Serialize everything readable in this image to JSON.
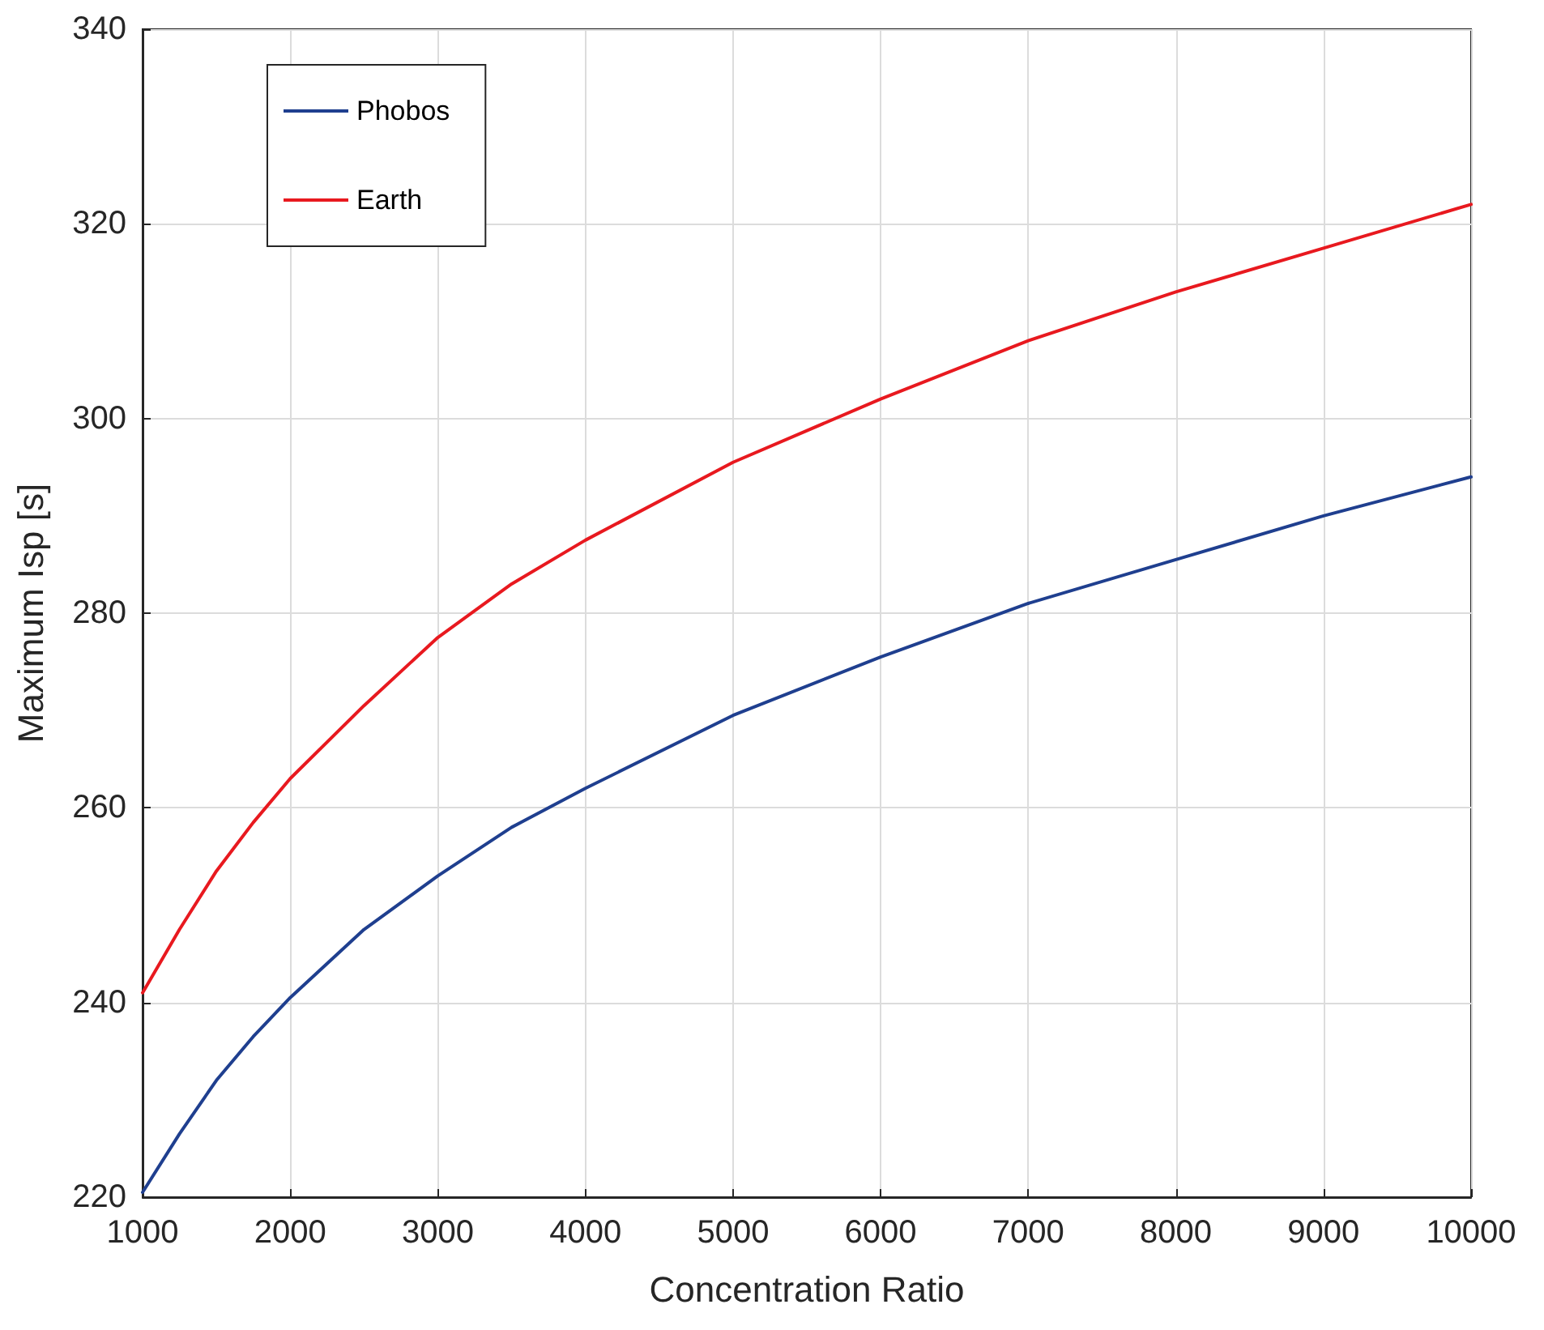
{
  "chart_data": {
    "type": "line",
    "xlabel": "Concentration Ratio",
    "ylabel": "Maximum Isp [s]",
    "xlim": [
      1000,
      10000
    ],
    "xticks": [
      1000,
      2000,
      3000,
      4000,
      5000,
      6000,
      7000,
      8000,
      9000,
      10000
    ],
    "ylim": [
      220,
      340
    ],
    "yticks": [
      220,
      240,
      260,
      280,
      300,
      320,
      340
    ],
    "grid": true,
    "legend": "top left",
    "marker": "none",
    "line_style": "solid",
    "series": [
      {
        "name": "Phobos",
        "color": "#1f3f8f",
        "x": [
          1000,
          1250,
          1500,
          1750,
          2000,
          2500,
          3000,
          3500,
          4000,
          5000,
          6000,
          7000,
          8000,
          9000,
          10000
        ],
        "values": [
          220.5,
          226.5,
          232,
          236.5,
          240.5,
          247.5,
          253,
          258,
          262,
          269.5,
          275.5,
          281,
          285.5,
          290,
          294
        ]
      },
      {
        "name": "Earth",
        "color": "#e8191f",
        "x": [
          1000,
          1250,
          1500,
          1750,
          2000,
          2500,
          3000,
          3500,
          4000,
          5000,
          6000,
          7000,
          8000,
          9000,
          10000
        ],
        "values": [
          241,
          247.5,
          253.5,
          258.5,
          263,
          270.5,
          277.5,
          283,
          287.5,
          295.5,
          302,
          308,
          313,
          317.5,
          322
        ]
      }
    ]
  }
}
